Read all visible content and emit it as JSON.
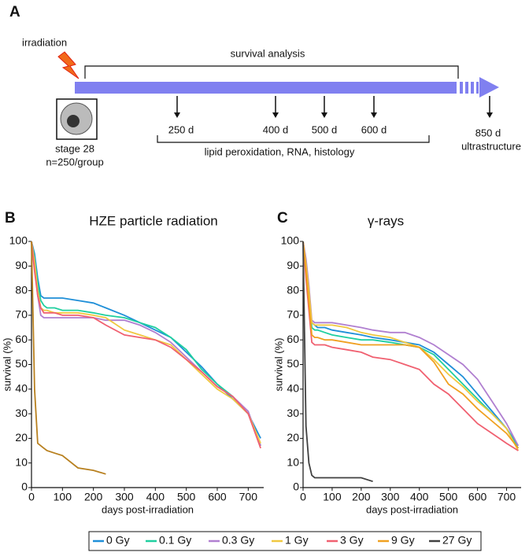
{
  "diagram": {
    "panel": "A",
    "irradiation": "irradiation",
    "survival_analysis": "survival analysis",
    "timepoints": [
      "250 d",
      "400 d",
      "500 d",
      "600 d"
    ],
    "assays": "lipid peroxidation, RNA, histology",
    "stage": "stage 28",
    "group": "n=250/group",
    "endpoint": "850 d",
    "endpoint_assay": "ultrastructure"
  },
  "chart_data": [
    {
      "type": "line",
      "panel": "B",
      "title": "HZE particle radiation",
      "xlabel": "days post-irradiation",
      "ylabel": "survival  (%)",
      "xlim": [
        0,
        750
      ],
      "ylim": [
        0,
        100
      ],
      "xticks": [
        0,
        100,
        200,
        300,
        400,
        500,
        600,
        700
      ],
      "yticks": [
        0,
        10,
        20,
        30,
        40,
        50,
        60,
        70,
        80,
        90,
        100
      ],
      "x": [
        0,
        10,
        20,
        30,
        40,
        50,
        75,
        100,
        150,
        200,
        240,
        300,
        350,
        400,
        450,
        500,
        550,
        600,
        650,
        700,
        740
      ],
      "series": [
        {
          "color": "#1f8fd8",
          "values": [
            100,
            95,
            85,
            78,
            77,
            77,
            77,
            77,
            76,
            75,
            73,
            70,
            67,
            64,
            61,
            55,
            49,
            42,
            36,
            30,
            20
          ]
        },
        {
          "color": "#1fcf9f",
          "values": [
            100,
            93,
            83,
            76,
            74,
            73,
            73,
            72,
            72,
            71,
            70,
            69,
            67,
            65,
            61,
            56,
            48,
            42,
            37,
            30,
            17
          ]
        },
        {
          "color": "#b07fd0",
          "values": [
            100,
            90,
            78,
            70,
            69,
            69,
            69,
            69,
            69,
            69,
            68,
            68,
            66,
            63,
            59,
            53,
            47,
            41,
            37,
            31,
            17
          ]
        },
        {
          "color": "#f0c840",
          "values": [
            100,
            92,
            80,
            73,
            72,
            72,
            71,
            71,
            71,
            70,
            69,
            64,
            62,
            60,
            58,
            52,
            46,
            40,
            36,
            30,
            18
          ]
        },
        {
          "color": "#f06070",
          "values": [
            100,
            88,
            78,
            73,
            71,
            71,
            71,
            70,
            70,
            69,
            66,
            62,
            61,
            60,
            57,
            52,
            47,
            41,
            37,
            30,
            16
          ]
        },
        {
          "color": "#b8801f",
          "values": [
            100,
            40,
            18,
            17,
            16,
            15,
            14,
            13,
            8,
            7,
            5.5,
            null,
            null,
            null,
            null,
            null,
            null,
            null,
            null,
            null,
            null
          ]
        }
      ]
    },
    {
      "type": "line",
      "panel": "C",
      "title": "γ-rays",
      "xlabel": "days post-irradiation",
      "ylabel": "survival  (%)",
      "xlim": [
        0,
        750
      ],
      "ylim": [
        0,
        100
      ],
      "xticks": [
        0,
        100,
        200,
        300,
        400,
        500,
        600,
        700
      ],
      "yticks": [
        0,
        10,
        20,
        30,
        40,
        50,
        60,
        70,
        80,
        90,
        100
      ],
      "x": [
        0,
        10,
        20,
        30,
        40,
        50,
        75,
        100,
        150,
        200,
        240,
        300,
        350,
        400,
        450,
        500,
        550,
        600,
        650,
        700,
        740
      ],
      "series": [
        {
          "name": "0 Gy",
          "color": "#1f8fd8",
          "values": [
            100,
            92,
            80,
            67,
            66,
            65,
            65,
            64,
            63,
            62,
            61,
            60,
            59,
            58,
            55,
            50,
            45,
            38,
            31,
            24,
            17
          ]
        },
        {
          "name": "0.1 Gy",
          "color": "#1fcf9f",
          "values": [
            100,
            90,
            78,
            65,
            64,
            64,
            63,
            62,
            61,
            60,
            60,
            59,
            58,
            57,
            54,
            48,
            42,
            36,
            30,
            24,
            16
          ]
        },
        {
          "name": "0.3 Gy",
          "color": "#b07fd0",
          "values": [
            100,
            93,
            82,
            68,
            67,
            67,
            67,
            67,
            66,
            65,
            64,
            63,
            63,
            61,
            58,
            54,
            50,
            44,
            35,
            26,
            17
          ]
        },
        {
          "name": "1 Gy",
          "color": "#f0c840",
          "values": [
            100,
            91,
            80,
            67,
            66,
            66,
            66,
            66,
            65,
            63,
            62,
            61,
            59,
            57,
            52,
            46,
            41,
            35,
            30,
            24,
            15
          ]
        },
        {
          "name": "3 Gy",
          "color": "#f06070",
          "values": [
            100,
            85,
            72,
            59,
            58,
            58,
            58,
            57,
            56,
            55,
            53,
            52,
            50,
            48,
            42,
            38,
            32,
            26,
            22,
            18,
            15
          ]
        },
        {
          "name": "9 Gy",
          "color": "#f0a020",
          "values": [
            100,
            88,
            75,
            62,
            61,
            61,
            60,
            60,
            59,
            58,
            58,
            58,
            58,
            57,
            51,
            42,
            38,
            32,
            27,
            22,
            16
          ]
        },
        {
          "name": "27 Gy",
          "color": "#404040",
          "values": [
            100,
            25,
            10,
            5,
            4,
            4,
            4,
            4,
            4,
            4,
            2.5,
            null,
            null,
            null,
            null,
            null,
            null,
            null,
            null,
            null,
            null
          ]
        }
      ]
    }
  ]
}
